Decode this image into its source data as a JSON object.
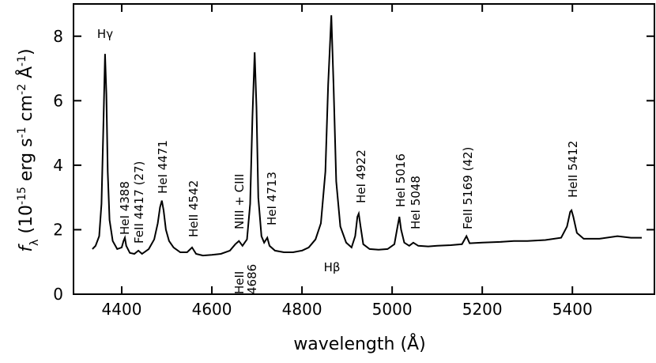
{
  "chart_data": {
    "type": "line",
    "x_label": "wavelength (Å)",
    "y_label": [
      "f",
      "λ",
      " (10",
      "-15",
      " erg s",
      "-1",
      " cm",
      "-2",
      " Å",
      "-1",
      ")"
    ],
    "color": "#000000",
    "xlim": [
      4293,
      5582
    ],
    "xticks": [
      4400,
      4600,
      4800,
      5000,
      5200,
      5400
    ],
    "ylim": [
      0,
      9
    ],
    "yticks": [
      0,
      2,
      4,
      6,
      8
    ],
    "x": [
      4335,
      4342,
      4350,
      4355,
      4359,
      4363,
      4366,
      4369,
      4373,
      4380,
      4390,
      4400,
      4404,
      4407,
      4410,
      4418,
      4428,
      4437,
      4445,
      4460,
      4472,
      4480,
      4485,
      4489,
      4493,
      4498,
      4505,
      4515,
      4530,
      4545,
      4556,
      4565,
      4580,
      4600,
      4620,
      4640,
      4652,
      4660,
      4668,
      4678,
      4685,
      4690,
      4695,
      4699,
      4703,
      4710,
      4716,
      4723,
      4728,
      4740,
      4760,
      4780,
      4800,
      4815,
      4830,
      4842,
      4852,
      4858,
      4865,
      4870,
      4876,
      4885,
      4898,
      4910,
      4918,
      4923,
      4926,
      4930,
      4936,
      4950,
      4970,
      4990,
      5005,
      5012,
      5016,
      5020,
      5027,
      5038,
      5047,
      5058,
      5080,
      5100,
      5130,
      5155,
      5165,
      5172,
      5200,
      5240,
      5270,
      5300,
      5340,
      5375,
      5388,
      5395,
      5398,
      5402,
      5410,
      5425,
      5460,
      5500,
      5530,
      5554
    ],
    "values": [
      1.4,
      1.5,
      1.8,
      2.8,
      5.0,
      7.45,
      6.2,
      3.8,
      2.3,
      1.65,
      1.4,
      1.45,
      1.65,
      1.75,
      1.5,
      1.28,
      1.25,
      1.35,
      1.25,
      1.4,
      1.7,
      2.2,
      2.7,
      2.9,
      2.6,
      2.0,
      1.65,
      1.45,
      1.3,
      1.3,
      1.45,
      1.25,
      1.2,
      1.22,
      1.25,
      1.35,
      1.55,
      1.65,
      1.5,
      1.7,
      2.8,
      5.5,
      7.5,
      5.8,
      3.0,
      1.8,
      1.6,
      1.75,
      1.5,
      1.35,
      1.3,
      1.3,
      1.35,
      1.45,
      1.7,
      2.2,
      3.8,
      6.5,
      8.65,
      6.5,
      3.5,
      2.1,
      1.6,
      1.45,
      1.8,
      2.4,
      2.5,
      2.1,
      1.55,
      1.4,
      1.38,
      1.4,
      1.55,
      2.1,
      2.4,
      2.0,
      1.6,
      1.5,
      1.6,
      1.5,
      1.48,
      1.5,
      1.52,
      1.55,
      1.8,
      1.58,
      1.6,
      1.62,
      1.65,
      1.65,
      1.68,
      1.75,
      2.1,
      2.55,
      2.6,
      2.4,
      1.9,
      1.72,
      1.72,
      1.8,
      1.75,
      1.75
    ],
    "annotations": [
      "Hγ",
      "HeI 4388",
      "FeII 4417 (27)",
      "HeI 4471",
      "HeII 4542",
      "NIII + CIII",
      "HeII",
      "4686",
      "HeI 4713",
      "Hβ",
      "HeI 4922",
      "HeI 5016",
      "HeI 5048",
      "FeII 5169 (42)",
      "HeII 5412"
    ]
  }
}
